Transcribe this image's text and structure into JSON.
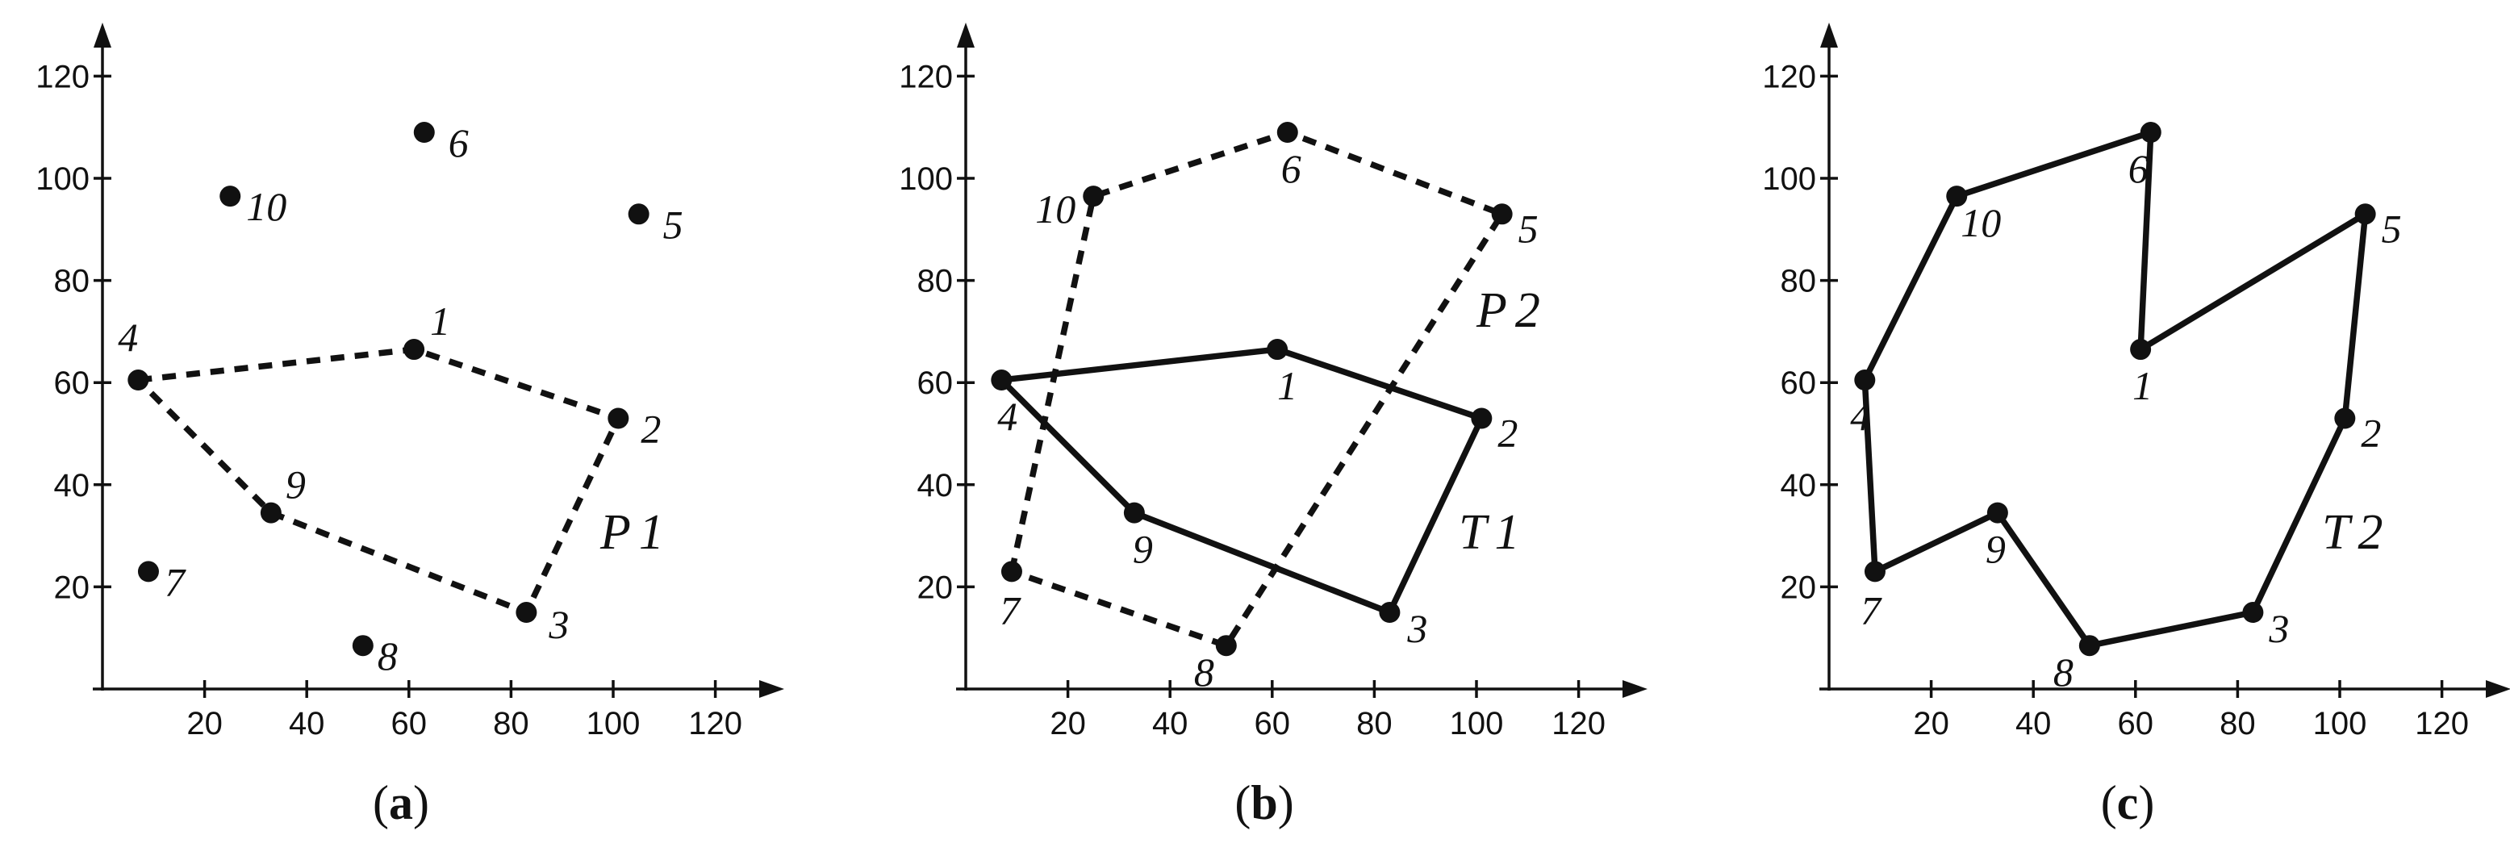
{
  "points": {
    "1": [
      61,
      66.5
    ],
    "2": [
      101,
      53
    ],
    "3": [
      83,
      15
    ],
    "4": [
      7,
      60.5
    ],
    "5": [
      105,
      93
    ],
    "6": [
      63,
      109
    ],
    "7": [
      9,
      23
    ],
    "8": [
      51,
      8.5
    ],
    "9": [
      33,
      34.5
    ],
    "10": [
      25,
      96.5
    ]
  },
  "axes": {
    "x_ticks": [
      "20",
      "40",
      "60",
      "80",
      "100",
      "120"
    ],
    "y_ticks": [
      "20",
      "40",
      "60",
      "80",
      "100",
      "120"
    ]
  },
  "panels": [
    {
      "id": "a",
      "caption_open": "(",
      "caption_letter": "a",
      "caption_close": ")",
      "point_labels": [
        "1",
        "2",
        "3",
        "4",
        "5",
        "6",
        "7",
        "8",
        "9",
        "10"
      ],
      "polygons": [
        {
          "label_main": "P",
          "label_sub": "1",
          "style": "dashed",
          "order": [
            "4",
            "1",
            "2",
            "3",
            "9",
            "4"
          ]
        }
      ]
    },
    {
      "id": "b",
      "caption_open": "(",
      "caption_letter": "b",
      "caption_close": ")",
      "point_labels": [
        "1",
        "2",
        "3",
        "4",
        "5",
        "6",
        "7",
        "8",
        "9",
        "10"
      ],
      "polygons": [
        {
          "label_main": "P",
          "label_sub": "2",
          "style": "dashed",
          "order": [
            "7",
            "10",
            "6",
            "5",
            "8",
            "7"
          ]
        },
        {
          "label_main": "T",
          "label_sub": "1",
          "style": "solid",
          "order": [
            "4",
            "1",
            "2",
            "3",
            "9",
            "4"
          ]
        }
      ]
    },
    {
      "id": "c",
      "caption_open": "(",
      "caption_letter": "c",
      "caption_close": ")",
      "point_labels": [
        "1",
        "2",
        "3",
        "4",
        "5",
        "6",
        "7",
        "8",
        "9",
        "10"
      ],
      "polygons": [
        {
          "label_main": "T",
          "label_sub": "2",
          "style": "solid",
          "order": [
            "4",
            "10",
            "6",
            "1",
            "5",
            "2",
            "3",
            "8",
            "9",
            "7",
            "4"
          ]
        }
      ]
    }
  ]
}
